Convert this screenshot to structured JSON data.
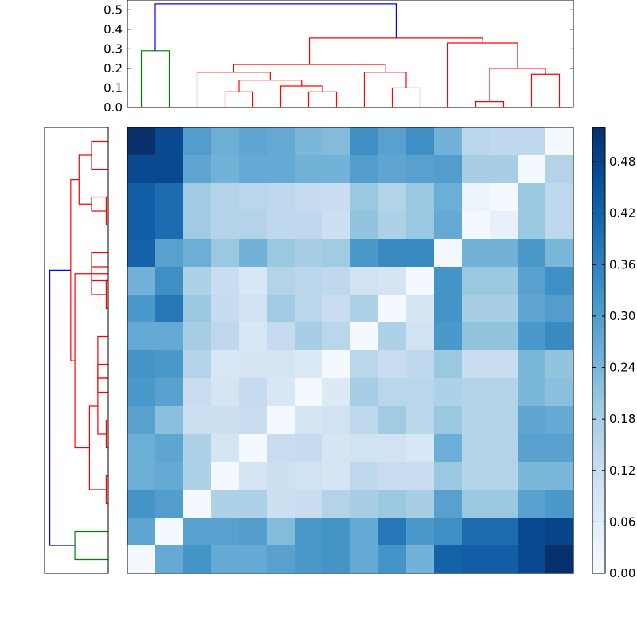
{
  "chart_data": {
    "type": "heatmap",
    "title": "",
    "colormap": [
      "#f7fbff",
      "#deebf7",
      "#c6dbef",
      "#9ecae1",
      "#6baed6",
      "#4292c6",
      "#2171b5",
      "#08519c",
      "#08306b"
    ],
    "colorbar": {
      "range": [
        0.0,
        0.52
      ],
      "ticks": [
        0.0,
        0.06,
        0.12,
        0.18,
        0.24,
        0.3,
        0.36,
        0.42,
        0.48
      ],
      "tick_labels": [
        "0.00",
        "0.06",
        "0.12",
        "0.18",
        "0.24",
        "0.30",
        "0.36",
        "0.42",
        "0.48"
      ]
    },
    "top_dendrogram": {
      "ylim": [
        0,
        0.55
      ],
      "y_ticks": [
        0.0,
        0.1,
        0.2,
        0.3,
        0.4,
        0.5
      ],
      "y_tick_labels": [
        "0.0",
        "0.1",
        "0.2",
        "0.3",
        "0.4",
        "0.5"
      ],
      "links": [
        {
          "x": [
            0.5,
            1.5
          ],
          "height": 0.29,
          "color": "#008000"
        },
        {
          "x": [
            3.5,
            4.5
          ],
          "height": 0.08,
          "color": "#ff0000"
        },
        {
          "x": [
            6.5,
            7.5
          ],
          "height": 0.08,
          "color": "#ff0000"
        },
        {
          "x": [
            5.5,
            7.0
          ],
          "height": 0.11,
          "color": "#ff0000"
        },
        {
          "x": [
            4.0,
            6.25
          ],
          "height": 0.14,
          "color": "#ff0000"
        },
        {
          "x": [
            2.5,
            5.125
          ],
          "height": 0.18,
          "color": "#ff0000"
        },
        {
          "x": [
            9.5,
            10.5
          ],
          "height": 0.1,
          "color": "#ff0000"
        },
        {
          "x": [
            8.5,
            10.0
          ],
          "height": 0.18,
          "color": "#ff0000"
        },
        {
          "x": [
            3.8125,
            9.25
          ],
          "height": 0.22,
          "color": "#ff0000"
        },
        {
          "x": [
            12.5,
            13.5
          ],
          "height": 0.03,
          "color": "#ff0000"
        },
        {
          "x": [
            14.5,
            15.5
          ],
          "height": 0.17,
          "color": "#ff0000"
        },
        {
          "x": [
            13.0,
            15.0
          ],
          "height": 0.2,
          "color": "#ff0000"
        },
        {
          "x": [
            11.5,
            14.0
          ],
          "height": 0.33,
          "color": "#ff0000"
        },
        {
          "x": [
            6.53,
            12.75
          ],
          "height": 0.355,
          "color": "#ff0000"
        },
        {
          "x": [
            1.0,
            9.64
          ],
          "height": 0.53,
          "color": "#0000ff"
        }
      ]
    },
    "left_dendrogram": {
      "links": [
        {
          "pos": [
            0.5,
            1.5
          ],
          "height": 0.08,
          "color": "#ff0000"
        },
        {
          "pos": [
            2.5,
            3.5
          ],
          "height": 0.01,
          "color": "#ff0000"
        },
        {
          "pos": [
            2.5,
            3.0
          ],
          "height": 0.08,
          "color": "#ff0000"
        },
        {
          "pos": [
            1.0,
            2.75
          ],
          "height": 0.14,
          "color": "#ff0000"
        },
        {
          "pos": [
            5.5,
            6.5
          ],
          "height": 0.01,
          "color": "#ff0000"
        },
        {
          "pos": [
            5.0,
            6.0
          ],
          "height": 0.08,
          "color": "#ff0000"
        },
        {
          "pos": [
            4.5,
            5.5
          ],
          "height": 0.08,
          "color": "#ff0000"
        },
        {
          "pos": [
            8.5,
            9.5
          ],
          "height": 0.05,
          "color": "#ff0000"
        },
        {
          "pos": [
            7.5,
            9.0
          ],
          "height": 0.05,
          "color": "#ff0000"
        },
        {
          "pos": [
            10.5,
            11.5
          ],
          "height": 0.01,
          "color": "#ff0000"
        },
        {
          "pos": [
            9.0,
            11.0
          ],
          "height": 0.05,
          "color": "#ff0000"
        },
        {
          "pos": [
            12.5,
            13.5
          ],
          "height": 0.01,
          "color": "#ff0000"
        },
        {
          "pos": [
            10.0,
            13.0
          ],
          "height": 0.09,
          "color": "#ff0000"
        },
        {
          "pos": [
            5.25,
            11.5
          ],
          "height": 0.16,
          "color": "#ff0000"
        },
        {
          "pos": [
            1.875,
            8.375
          ],
          "height": 0.18,
          "color": "#ff0000"
        },
        {
          "pos": [
            14.5,
            15.5
          ],
          "height": 0.16,
          "color": "#008000"
        },
        {
          "pos": [
            5.125,
            15.0
          ],
          "height": 0.28,
          "color": "#0000ff"
        }
      ]
    },
    "matrix": [
      [
        0.52,
        0.47,
        0.3,
        0.26,
        0.28,
        0.27,
        0.24,
        0.23,
        0.33,
        0.29,
        0.33,
        0.25,
        0.15,
        0.14,
        0.14,
        0.01
      ],
      [
        0.47,
        0.47,
        0.28,
        0.25,
        0.27,
        0.27,
        0.25,
        0.25,
        0.3,
        0.28,
        0.29,
        0.3,
        0.18,
        0.18,
        0.01,
        0.16
      ],
      [
        0.43,
        0.4,
        0.19,
        0.16,
        0.15,
        0.14,
        0.13,
        0.12,
        0.2,
        0.16,
        0.2,
        0.26,
        0.03,
        0.01,
        0.2,
        0.14
      ],
      [
        0.43,
        0.4,
        0.19,
        0.16,
        0.16,
        0.14,
        0.14,
        0.11,
        0.21,
        0.17,
        0.2,
        0.27,
        0.01,
        0.04,
        0.2,
        0.14
      ],
      [
        0.42,
        0.29,
        0.26,
        0.2,
        0.25,
        0.2,
        0.18,
        0.19,
        0.31,
        0.34,
        0.34,
        0.01,
        0.25,
        0.25,
        0.31,
        0.24
      ],
      [
        0.25,
        0.33,
        0.17,
        0.12,
        0.08,
        0.16,
        0.15,
        0.14,
        0.1,
        0.09,
        0.01,
        0.32,
        0.2,
        0.2,
        0.29,
        0.33
      ],
      [
        0.31,
        0.38,
        0.2,
        0.13,
        0.1,
        0.19,
        0.15,
        0.12,
        0.17,
        0.01,
        0.09,
        0.32,
        0.18,
        0.18,
        0.28,
        0.3
      ],
      [
        0.27,
        0.27,
        0.18,
        0.14,
        0.08,
        0.13,
        0.18,
        0.15,
        0.01,
        0.17,
        0.1,
        0.31,
        0.21,
        0.21,
        0.31,
        0.34
      ],
      [
        0.32,
        0.31,
        0.16,
        0.08,
        0.09,
        0.09,
        0.07,
        0.01,
        0.15,
        0.12,
        0.14,
        0.2,
        0.12,
        0.12,
        0.24,
        0.21
      ],
      [
        0.31,
        0.29,
        0.12,
        0.09,
        0.13,
        0.08,
        0.01,
        0.07,
        0.18,
        0.15,
        0.15,
        0.17,
        0.16,
        0.16,
        0.24,
        0.22
      ],
      [
        0.29,
        0.22,
        0.11,
        0.11,
        0.12,
        0.01,
        0.09,
        0.1,
        0.14,
        0.19,
        0.15,
        0.2,
        0.16,
        0.16,
        0.28,
        0.27
      ],
      [
        0.26,
        0.28,
        0.17,
        0.09,
        0.01,
        0.12,
        0.13,
        0.09,
        0.1,
        0.1,
        0.08,
        0.26,
        0.16,
        0.16,
        0.29,
        0.29
      ],
      [
        0.26,
        0.27,
        0.17,
        0.01,
        0.09,
        0.11,
        0.1,
        0.09,
        0.14,
        0.12,
        0.12,
        0.2,
        0.16,
        0.16,
        0.24,
        0.24
      ],
      [
        0.32,
        0.3,
        0.01,
        0.17,
        0.17,
        0.11,
        0.12,
        0.16,
        0.18,
        0.2,
        0.18,
        0.29,
        0.2,
        0.2,
        0.29,
        0.31
      ],
      [
        0.28,
        0.01,
        0.29,
        0.29,
        0.3,
        0.23,
        0.31,
        0.32,
        0.27,
        0.38,
        0.31,
        0.33,
        0.4,
        0.4,
        0.47,
        0.48
      ],
      [
        0.01,
        0.27,
        0.32,
        0.27,
        0.27,
        0.29,
        0.31,
        0.32,
        0.27,
        0.32,
        0.25,
        0.42,
        0.43,
        0.43,
        0.47,
        0.52
      ]
    ]
  }
}
